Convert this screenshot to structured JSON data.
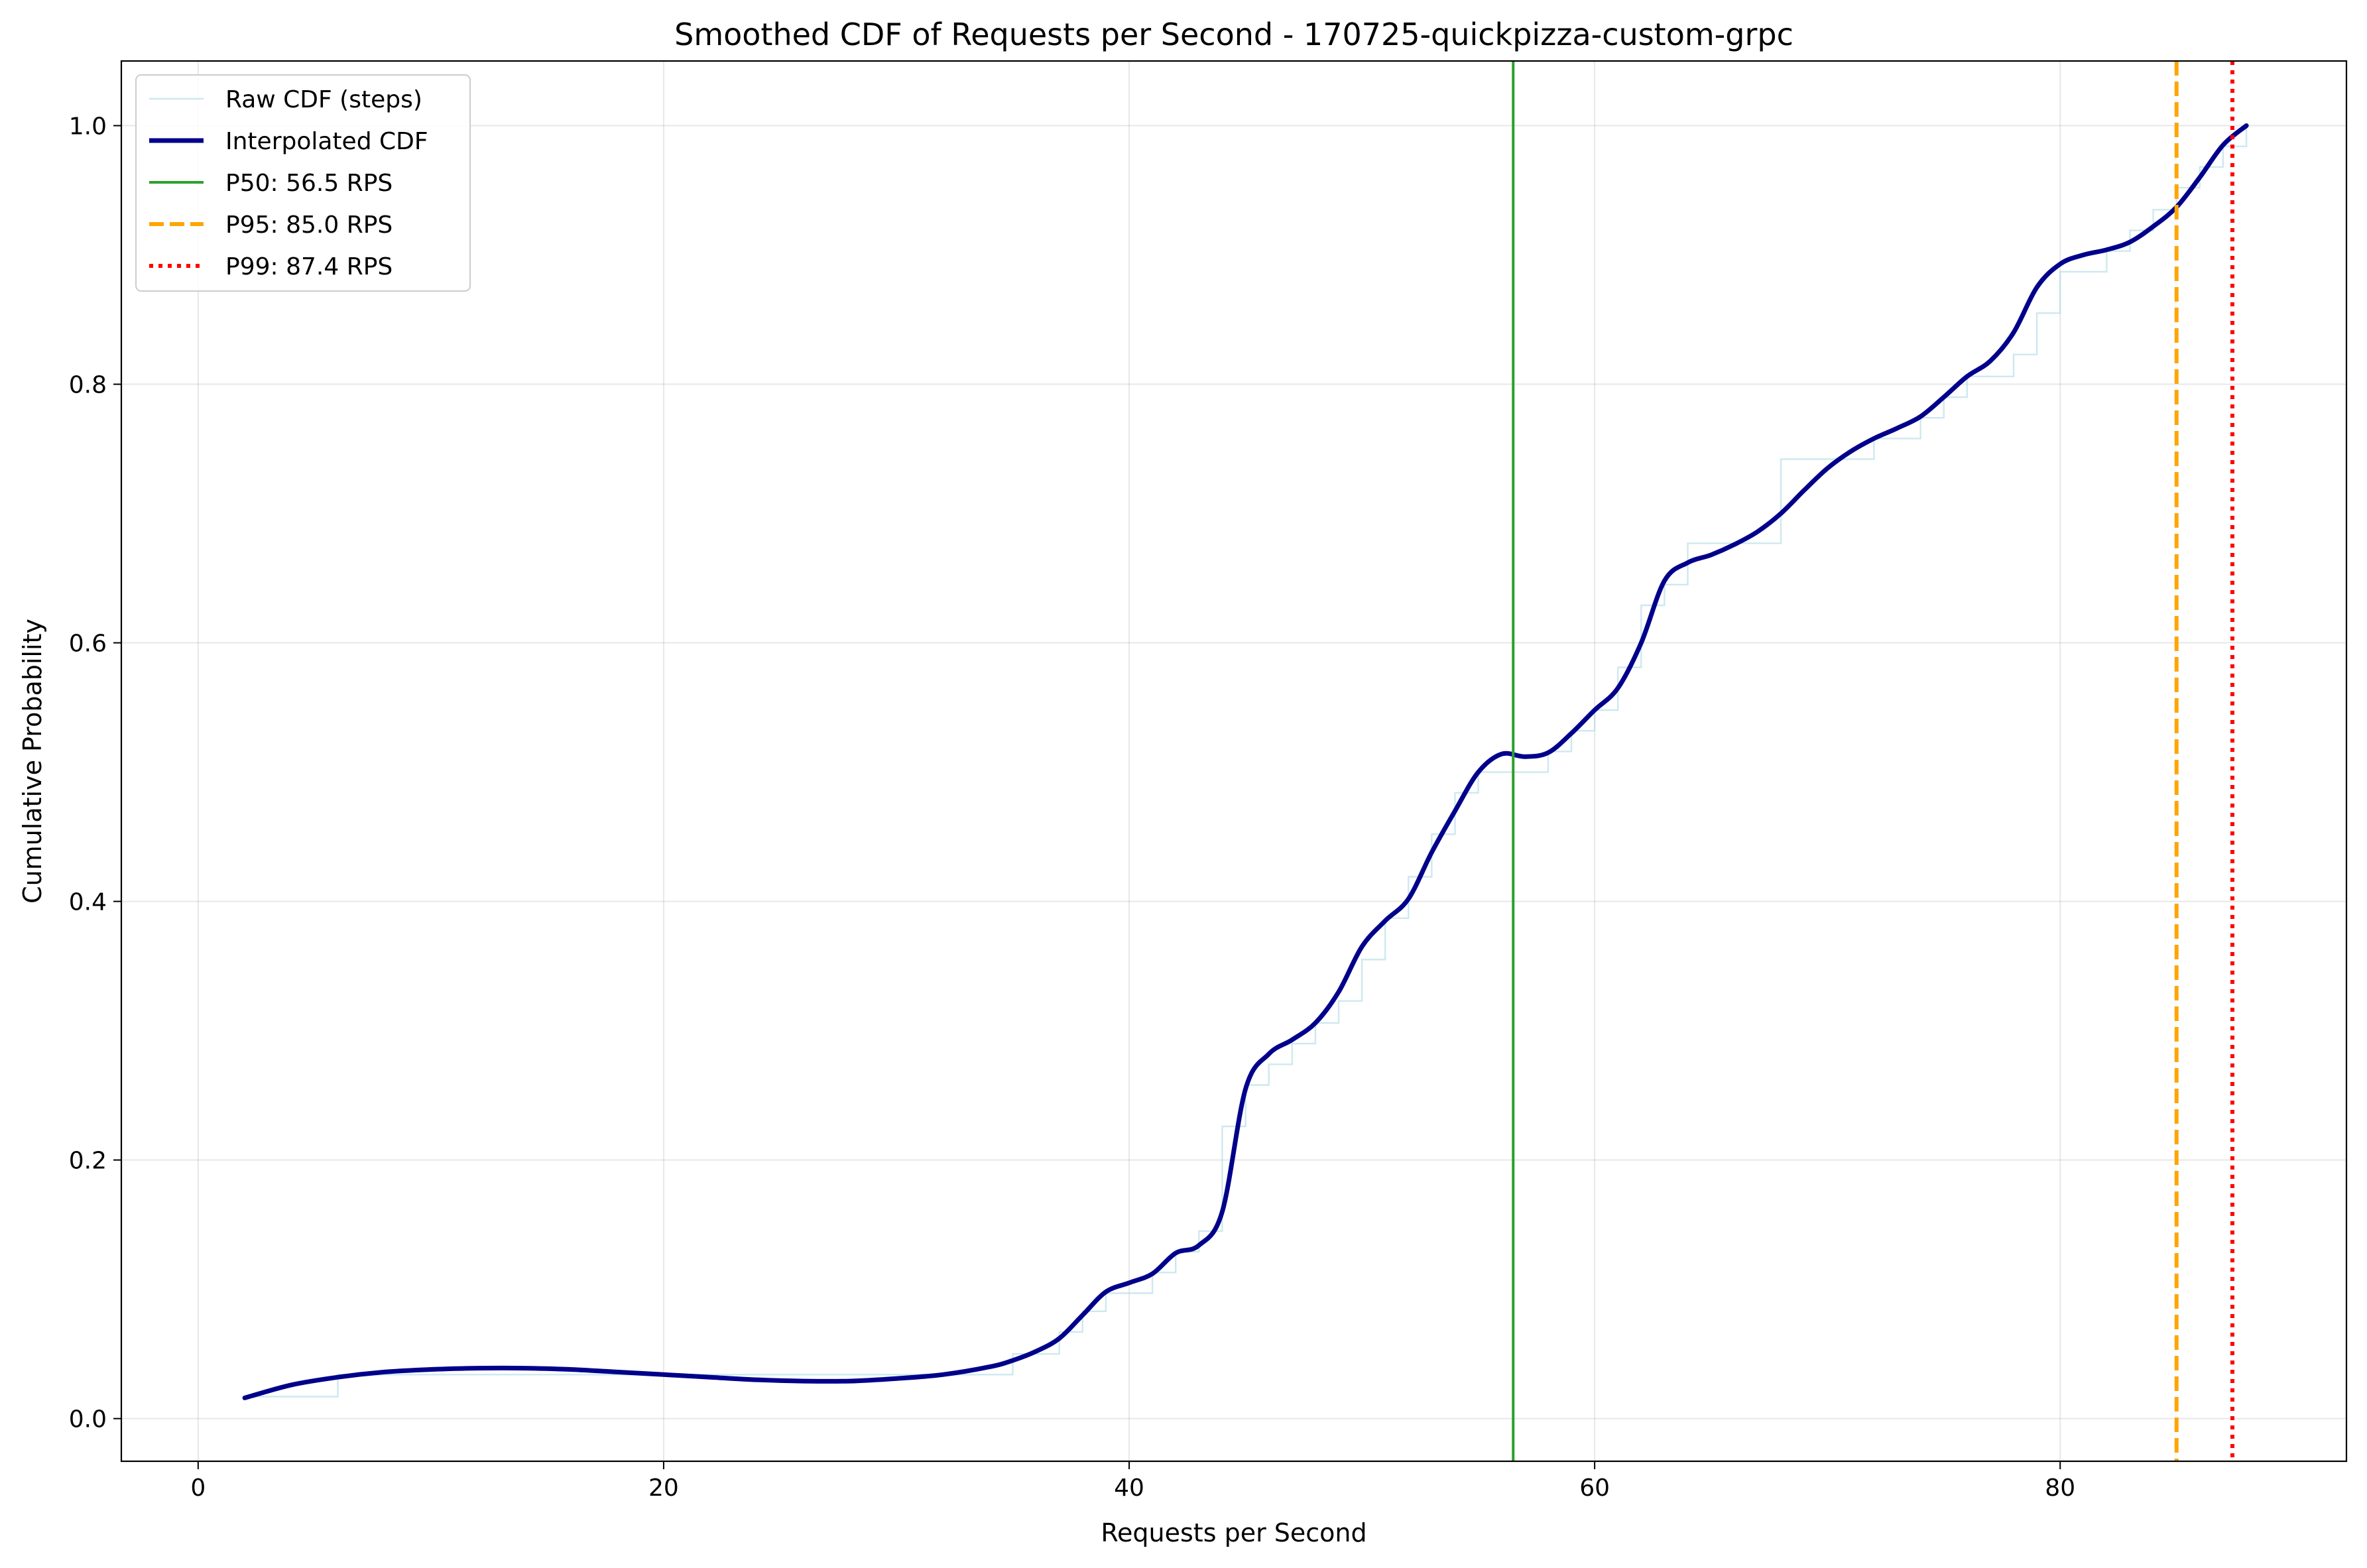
{
  "chart_data": {
    "type": "line",
    "title": "Smoothed CDF of Requests per Second - 170725-quickpizza-custom-grpc",
    "xlabel": "Requests per Second",
    "ylabel": "Cumulative Probability",
    "xlim": [
      -3.3,
      92.3
    ],
    "ylim": [
      -0.033,
      1.05
    ],
    "xticks": [
      0,
      20,
      40,
      60,
      80
    ],
    "yticks": [
      0.0,
      0.2,
      0.4,
      0.6,
      0.8,
      1.0
    ],
    "xtick_labels": [
      "0",
      "20",
      "40",
      "60",
      "80"
    ],
    "ytick_labels": [
      "0.0",
      "0.2",
      "0.4",
      "0.6",
      "0.8",
      "1.0"
    ],
    "grid": true,
    "legend_position": "top-left",
    "series": [
      {
        "name": "Raw CDF (steps)",
        "style": "step",
        "color": "#add8e6",
        "x": [
          2,
          6,
          35,
          37,
          38,
          39,
          41,
          42,
          43,
          44,
          45,
          46,
          47,
          48,
          49,
          50,
          51,
          52,
          53,
          54,
          55,
          58,
          59,
          60,
          61,
          62,
          63,
          64,
          68,
          72,
          74,
          75,
          76,
          78,
          79,
          80,
          82,
          83,
          84,
          85,
          86,
          87,
          88
        ],
        "y": [
          0.017,
          0.034,
          0.05,
          0.067,
          0.083,
          0.097,
          0.113,
          0.129,
          0.145,
          0.226,
          0.258,
          0.274,
          0.29,
          0.306,
          0.323,
          0.355,
          0.387,
          0.419,
          0.452,
          0.484,
          0.5,
          0.516,
          0.532,
          0.548,
          0.581,
          0.629,
          0.645,
          0.677,
          0.742,
          0.758,
          0.774,
          0.79,
          0.806,
          0.823,
          0.855,
          0.887,
          0.903,
          0.919,
          0.935,
          0.952,
          0.968,
          0.984,
          1.0
        ]
      },
      {
        "name": "Interpolated CDF",
        "style": "line",
        "color": "#00008b",
        "x": [
          2,
          4,
          6,
          8,
          10,
          12,
          14,
          16,
          18,
          20,
          22,
          24,
          26,
          28,
          30,
          32,
          34,
          35,
          36,
          37,
          38,
          39,
          40,
          41,
          42,
          43,
          44,
          45,
          46,
          47,
          48,
          49,
          50,
          51,
          52,
          53,
          54,
          55,
          56,
          57,
          58,
          59,
          60,
          61,
          62,
          63,
          64,
          65,
          66,
          67,
          68,
          69,
          70,
          71,
          72,
          73,
          74,
          75,
          76,
          77,
          78,
          79,
          80,
          81,
          82,
          83,
          84,
          85,
          86,
          87,
          88
        ],
        "y": [
          0.016,
          0.026,
          0.032,
          0.036,
          0.038,
          0.039,
          0.039,
          0.038,
          0.036,
          0.034,
          0.032,
          0.03,
          0.029,
          0.029,
          0.031,
          0.034,
          0.04,
          0.045,
          0.052,
          0.062,
          0.08,
          0.098,
          0.105,
          0.112,
          0.128,
          0.134,
          0.16,
          0.255,
          0.282,
          0.293,
          0.306,
          0.33,
          0.365,
          0.385,
          0.402,
          0.438,
          0.47,
          0.5,
          0.514,
          0.512,
          0.515,
          0.53,
          0.548,
          0.565,
          0.6,
          0.648,
          0.662,
          0.668,
          0.676,
          0.686,
          0.7,
          0.718,
          0.735,
          0.748,
          0.758,
          0.766,
          0.775,
          0.79,
          0.806,
          0.818,
          0.84,
          0.875,
          0.893,
          0.9,
          0.904,
          0.91,
          0.922,
          0.937,
          0.96,
          0.985,
          1.0
        ]
      }
    ],
    "percentiles": [
      {
        "name": "P50: 56.5 RPS",
        "value": 56.5,
        "color": "#2ca02c",
        "style": "solid"
      },
      {
        "name": "P95: 85.0 RPS",
        "value": 85.0,
        "color": "#ffa500",
        "style": "dashed"
      },
      {
        "name": "P99: 87.4 RPS",
        "value": 87.4,
        "color": "#ff0000",
        "style": "dotted"
      }
    ]
  }
}
